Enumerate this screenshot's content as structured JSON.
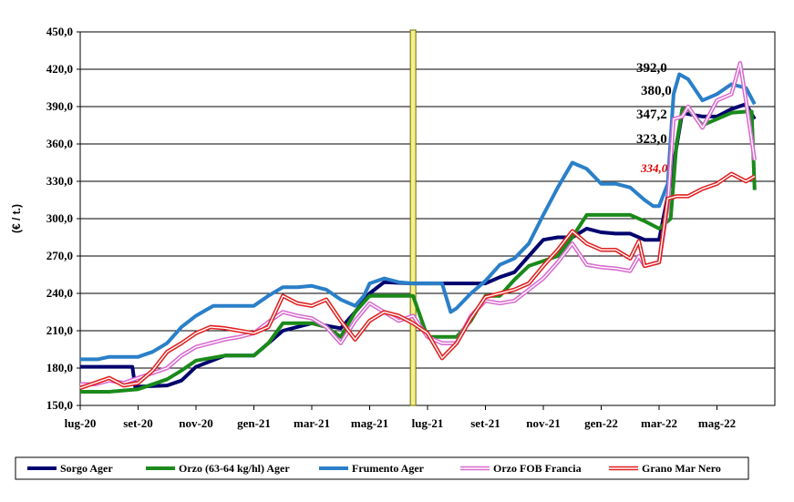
{
  "chart_data": {
    "type": "line",
    "ylabel": "(€ / t.)",
    "ylim": [
      150,
      450
    ],
    "yticks": [
      "150,0",
      "180,0",
      "210,0",
      "240,0",
      "270,0",
      "300,0",
      "330,0",
      "360,0",
      "390,0",
      "420,0",
      "450,0"
    ],
    "ytick_values": [
      150,
      180,
      210,
      240,
      270,
      300,
      330,
      360,
      390,
      420,
      450
    ],
    "xlim": [
      0,
      24
    ],
    "xticks": [
      "lug-20",
      "set-20",
      "nov-20",
      "gen-21",
      "mar-21",
      "mag-21",
      "lug-21",
      "set-21",
      "nov-21",
      "gen-22",
      "mar-22",
      "mag-22"
    ],
    "xtick_values": [
      0,
      2,
      4,
      6,
      8,
      10,
      12,
      14,
      16,
      18,
      20,
      22
    ],
    "grid": "horizontal",
    "legend_position": "bottom",
    "marker_line_x": 11.5,
    "series": [
      {
        "name": "Sorgo Ager",
        "color": "#00006e",
        "x": [
          0,
          1.8,
          1.9,
          3,
          3.5,
          4,
          5,
          6,
          6.5,
          7,
          8,
          8.5,
          9,
          9.5,
          10,
          10.5,
          11.5,
          12,
          13,
          14,
          14.5,
          15,
          15.5,
          16,
          16.5,
          17,
          17.5,
          18,
          18.5,
          19,
          19.5,
          19.8,
          20,
          20.4,
          20.8,
          21,
          21.5,
          22,
          22.5,
          23,
          23.3
        ],
        "values": [
          181,
          181,
          165,
          166,
          170,
          181,
          190,
          190,
          200,
          210,
          216,
          214,
          212,
          225,
          240,
          249,
          248,
          248,
          248,
          248,
          253,
          257,
          270,
          283,
          285,
          285,
          292,
          289,
          288,
          288,
          283,
          283,
          283,
          330,
          385,
          384,
          382,
          382,
          388,
          392,
          380
        ]
      },
      {
        "name": "Orzo (63-64 kg/hl) Ager",
        "color": "#1a8a1a",
        "x": [
          0,
          1,
          2,
          2.5,
          3,
          3.5,
          4,
          5,
          6,
          6.5,
          7,
          8,
          8.5,
          9,
          9.5,
          10,
          11.5,
          12,
          13,
          13.5,
          14,
          14.5,
          15,
          15.5,
          16,
          16.5,
          17,
          17.5,
          18,
          19,
          19.5,
          20,
          20.4,
          20.6,
          20.8,
          21,
          21.5,
          22,
          22.5,
          23,
          23.2,
          23.3
        ],
        "values": [
          161,
          161,
          163,
          167,
          171,
          178,
          186,
          190,
          190,
          200,
          216,
          216,
          213,
          205,
          225,
          238,
          238,
          205,
          205,
          218,
          238,
          238,
          251,
          262,
          266,
          270,
          285,
          303,
          303,
          303,
          298,
          292,
          300,
          360,
          388,
          388,
          375,
          380,
          385,
          386,
          386,
          323
        ]
      },
      {
        "name": "Frumento Ager",
        "color": "#2a7fc8",
        "x": [
          0,
          0.6,
          1,
          2,
          2.5,
          3,
          3.5,
          4,
          4.3,
          4.6,
          5,
          5.5,
          6,
          6.5,
          7,
          7.5,
          8,
          8.5,
          9,
          9.5,
          9.8,
          10,
          10.5,
          11,
          11.5,
          12,
          12.5,
          12.8,
          13,
          13.5,
          14,
          14.5,
          15,
          15.5,
          16,
          16.5,
          17,
          17.5,
          18,
          18.5,
          19,
          19.5,
          19.8,
          20,
          20.3,
          20.5,
          20.7,
          21,
          21.5,
          22,
          22.5,
          23,
          23.3
        ],
        "values": [
          187,
          187,
          189,
          189,
          193,
          200,
          213,
          222,
          226,
          230,
          230,
          230,
          230,
          238,
          245,
          245,
          246,
          243,
          235,
          230,
          238,
          248,
          252,
          249,
          248,
          248,
          248,
          225,
          228,
          240,
          250,
          263,
          268,
          280,
          303,
          325,
          345,
          340,
          328,
          328,
          325,
          315,
          310,
          310,
          328,
          400,
          416,
          412,
          395,
          400,
          408,
          405,
          392
        ]
      },
      {
        "name": "Orzo FOB Francia",
        "color": "#d86ad0",
        "x": [
          0,
          0.5,
          1,
          1.5,
          2,
          2.5,
          3,
          3.5,
          4,
          4.5,
          5,
          5.5,
          6,
          6.5,
          7,
          7.5,
          8,
          8.5,
          9,
          9.5,
          10,
          10.5,
          11,
          11.5,
          12,
          12.5,
          13,
          13.5,
          14,
          14.5,
          15,
          15.5,
          16,
          16.5,
          17,
          17.5,
          18,
          18.5,
          19,
          19.3,
          19.5,
          20,
          20.3,
          20.5,
          20.8,
          21,
          21.5,
          22,
          22.5,
          22.8,
          23,
          23.3
        ],
        "values": [
          167,
          167,
          170,
          168,
          172,
          176,
          180,
          190,
          197,
          200,
          203,
          205,
          208,
          217,
          225,
          222,
          220,
          213,
          200,
          218,
          232,
          225,
          218,
          222,
          205,
          200,
          200,
          222,
          234,
          232,
          234,
          243,
          252,
          265,
          280,
          263,
          261,
          260,
          258,
          270,
          262,
          265,
          310,
          380,
          382,
          390,
          373,
          395,
          400,
          425,
          395,
          347
        ]
      },
      {
        "name": "Grano Mar Nero",
        "color": "#e02020",
        "x": [
          0,
          0.5,
          1,
          1.5,
          2,
          2.5,
          3,
          3.5,
          4,
          4.5,
          5,
          5.5,
          6,
          6.5,
          7,
          7.5,
          8,
          8.5,
          9,
          9.5,
          10,
          10.5,
          11,
          11.5,
          12,
          12.5,
          13,
          13.5,
          14,
          14.5,
          15,
          15.5,
          16,
          16.5,
          17,
          17.5,
          18,
          18.5,
          19,
          19.3,
          19.5,
          20,
          20.3,
          20.6,
          21,
          21.5,
          22,
          22.5,
          23,
          23.3
        ],
        "values": [
          164,
          168,
          172,
          166,
          168,
          178,
          193,
          200,
          208,
          213,
          212,
          210,
          208,
          213,
          238,
          232,
          230,
          235,
          218,
          203,
          218,
          225,
          222,
          216,
          208,
          188,
          200,
          220,
          237,
          240,
          243,
          248,
          262,
          275,
          290,
          280,
          275,
          275,
          268,
          282,
          262,
          265,
          316,
          318,
          318,
          324,
          328,
          336,
          330,
          334
        ]
      }
    ],
    "annotations": [
      {
        "text": "392,0",
        "style": "black"
      },
      {
        "text": "380,0",
        "style": "black"
      },
      {
        "text": "347,2",
        "style": "black"
      },
      {
        "text": "323,0",
        "style": "black"
      },
      {
        "text": "334,0",
        "style": "red-italic"
      }
    ]
  }
}
